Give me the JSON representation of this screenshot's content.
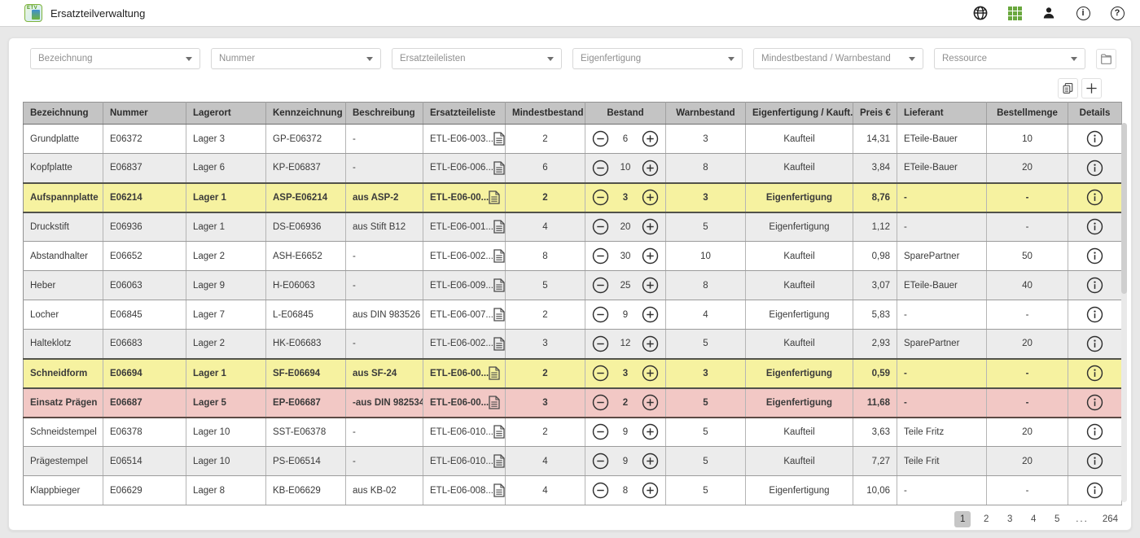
{
  "app": {
    "title": "Ersatzteilverwaltung",
    "icon_text": "ETV"
  },
  "topbar_icons": [
    "globe-icon",
    "apps-grid-icon",
    "user-icon",
    "info-icon",
    "help-icon"
  ],
  "filters": [
    {
      "placeholder": "Bezeichnung"
    },
    {
      "placeholder": "Nummer"
    },
    {
      "placeholder": "Ersatzteilelisten"
    },
    {
      "placeholder": "Eigenfertigung"
    },
    {
      "placeholder": "Mindestbestand / Warnbestand"
    },
    {
      "placeholder": "Ressource"
    }
  ],
  "colors": {
    "highlight_yellow": "#f6f2a0",
    "highlight_red": "#f2c8c5",
    "accent_green": "#6aa83e",
    "header_gray": "#c4c4c4"
  },
  "table": {
    "columns": [
      "Bezeichnung",
      "Nummer",
      "Lagerort",
      "Kennzeichnung",
      "Beschreibung",
      "Ersatzteileliste",
      "Mindestbestand",
      "Bestand",
      "Warnbestand",
      "Eigenfertigung / Kauft.",
      "Preis €",
      "Lieferant",
      "Bestellmenge",
      "Details"
    ],
    "rows": [
      {
        "bezeichnung": "Grundplatte",
        "nummer": "E06372",
        "lagerort": "Lager 3",
        "kennzeichnung": "GP-E06372",
        "beschreibung": "-",
        "etl": "ETL-E06-003...",
        "mindestbestand": "2",
        "bestand": "6",
        "warnbestand": "3",
        "fertigung": "Kaufteil",
        "preis": "14,31",
        "lieferant": "ETeile-Bauer",
        "bestellmenge": "10",
        "highlight": "none"
      },
      {
        "bezeichnung": "Kopfplatte",
        "nummer": "E06837",
        "lagerort": "Lager 6",
        "kennzeichnung": "KP-E06837",
        "beschreibung": "-",
        "etl": "ETL-E06-006...",
        "mindestbestand": "6",
        "bestand": "10",
        "warnbestand": "8",
        "fertigung": "Kaufteil",
        "preis": "3,84",
        "lieferant": "ETeile-Bauer",
        "bestellmenge": "20",
        "highlight": "none"
      },
      {
        "bezeichnung": "Aufspannplatte",
        "nummer": "E06214",
        "lagerort": "Lager 1",
        "kennzeichnung": "ASP-E06214",
        "beschreibung": "aus ASP-2",
        "etl": "ETL-E06-00...",
        "mindestbestand": "2",
        "bestand": "3",
        "warnbestand": "3",
        "fertigung": "Eigenfertigung",
        "preis": "8,76",
        "lieferant": "-",
        "bestellmenge": "-",
        "highlight": "yellow"
      },
      {
        "bezeichnung": "Druckstift",
        "nummer": "E06936",
        "lagerort": "Lager 1",
        "kennzeichnung": "DS-E06936",
        "beschreibung": "aus Stift B12",
        "etl": "ETL-E06-001...",
        "mindestbestand": "4",
        "bestand": "20",
        "warnbestand": "5",
        "fertigung": "Eigenfertigung",
        "preis": "1,12",
        "lieferant": "-",
        "bestellmenge": "-",
        "highlight": "none"
      },
      {
        "bezeichnung": "Abstandhalter",
        "nummer": "E06652",
        "lagerort": "Lager 2",
        "kennzeichnung": "ASH-E6652",
        "beschreibung": "-",
        "etl": "ETL-E06-002...",
        "mindestbestand": "8",
        "bestand": "30",
        "warnbestand": "10",
        "fertigung": "Kaufteil",
        "preis": "0,98",
        "lieferant": "SparePartner",
        "bestellmenge": "50",
        "highlight": "none"
      },
      {
        "bezeichnung": "Heber",
        "nummer": "E06063",
        "lagerort": "Lager 9",
        "kennzeichnung": "H-E06063",
        "beschreibung": "-",
        "etl": "ETL-E06-009...",
        "mindestbestand": "5",
        "bestand": "25",
        "warnbestand": "8",
        "fertigung": "Kaufteil",
        "preis": "3,07",
        "lieferant": "ETeile-Bauer",
        "bestellmenge": "40",
        "highlight": "none"
      },
      {
        "bezeichnung": "Locher",
        "nummer": "E06845",
        "lagerort": "Lager 7",
        "kennzeichnung": "L-E06845",
        "beschreibung": "aus DIN 983526",
        "etl": "ETL-E06-007...",
        "mindestbestand": "2",
        "bestand": "9",
        "warnbestand": "4",
        "fertigung": "Eigenfertigung",
        "preis": "5,83",
        "lieferant": "-",
        "bestellmenge": "-",
        "highlight": "none"
      },
      {
        "bezeichnung": "Halteklotz",
        "nummer": "E06683",
        "lagerort": "Lager 2",
        "kennzeichnung": "HK-E06683",
        "beschreibung": "-",
        "etl": "ETL-E06-002...",
        "mindestbestand": "3",
        "bestand": "12",
        "warnbestand": "5",
        "fertigung": "Kaufteil",
        "preis": "2,93",
        "lieferant": "SparePartner",
        "bestellmenge": "20",
        "highlight": "none"
      },
      {
        "bezeichnung": "Schneidform",
        "nummer": "E06694",
        "lagerort": "Lager 1",
        "kennzeichnung": "SF-E06694",
        "beschreibung": "aus SF-24",
        "etl": "ETL-E06-00...",
        "mindestbestand": "2",
        "bestand": "3",
        "warnbestand": "3",
        "fertigung": "Eigenfertigung",
        "preis": "0,59",
        "lieferant": "-",
        "bestellmenge": "-",
        "highlight": "yellow"
      },
      {
        "bezeichnung": "Einsatz Prägen",
        "nummer": "E06687",
        "lagerort": "Lager 5",
        "kennzeichnung": "EP-E06687",
        "beschreibung": "-aus DIN 982534",
        "etl": "ETL-E06-00...",
        "mindestbestand": "3",
        "bestand": "2",
        "warnbestand": "5",
        "fertigung": "Eigenfertigung",
        "preis": "11,68",
        "lieferant": "-",
        "bestellmenge": "-",
        "highlight": "red"
      },
      {
        "bezeichnung": "Schneidstempel",
        "nummer": "E06378",
        "lagerort": "Lager 10",
        "kennzeichnung": "SST-E06378",
        "beschreibung": "-",
        "etl": "ETL-E06-010...",
        "mindestbestand": "2",
        "bestand": "9",
        "warnbestand": "5",
        "fertigung": "Kaufteil",
        "preis": "3,63",
        "lieferant": "Teile Fritz",
        "bestellmenge": "20",
        "highlight": "none"
      },
      {
        "bezeichnung": "Prägestempel",
        "nummer": "E06514",
        "lagerort": "Lager 10",
        "kennzeichnung": "PS-E06514",
        "beschreibung": "-",
        "etl": "ETL-E06-010...",
        "mindestbestand": "4",
        "bestand": "9",
        "warnbestand": "5",
        "fertigung": "Kaufteil",
        "preis": "7,27",
        "lieferant": "Teile Frit",
        "bestellmenge": "20",
        "highlight": "none"
      },
      {
        "bezeichnung": "Klappbieger",
        "nummer": "E06629",
        "lagerort": "Lager 8",
        "kennzeichnung": "KB-E06629",
        "beschreibung": "aus KB-02",
        "etl": "ETL-E06-008...",
        "mindestbestand": "4",
        "bestand": "8",
        "warnbestand": "5",
        "fertigung": "Eigenfertigung",
        "preis": "10,06",
        "lieferant": "-",
        "bestellmenge": "-",
        "highlight": "none"
      }
    ]
  },
  "pagination": {
    "items": [
      {
        "label": "1",
        "current": true
      },
      {
        "label": "2",
        "current": false
      },
      {
        "label": "3",
        "current": false
      },
      {
        "label": "4",
        "current": false
      },
      {
        "label": "5",
        "current": false
      },
      {
        "label": "...",
        "current": false
      },
      {
        "label": "264",
        "current": false
      }
    ]
  }
}
